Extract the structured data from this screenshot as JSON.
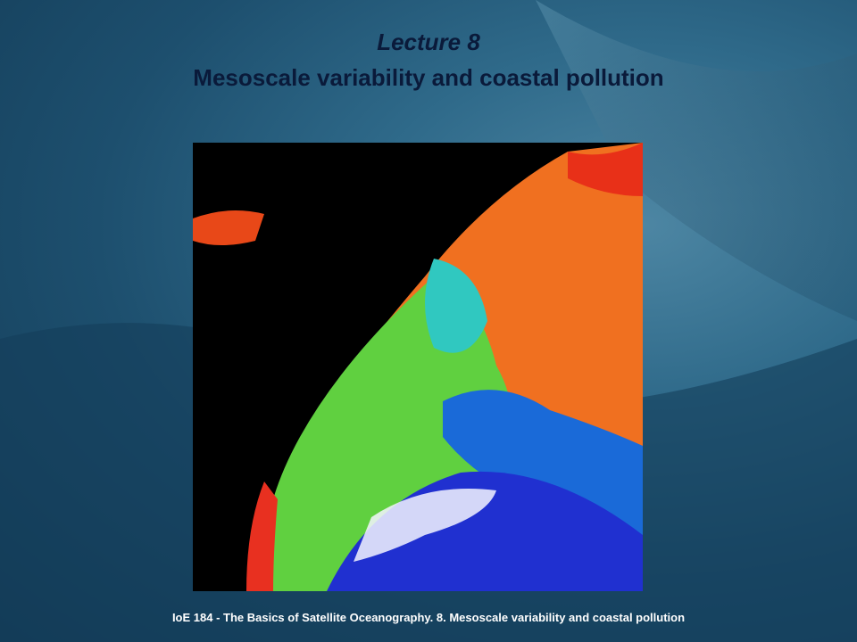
{
  "slide": {
    "title": "Lecture 8",
    "subtitle": "Mesoscale variability and coastal pollution",
    "footer": "IoE 184 - The Basics of Satellite Oceanography. 8. Mesoscale variability  and coastal pollution"
  }
}
